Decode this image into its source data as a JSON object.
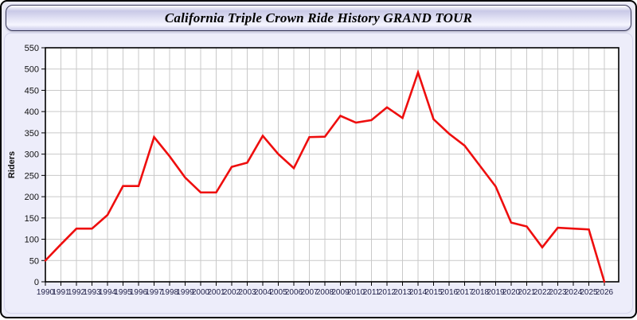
{
  "window": {
    "title": "California Triple Crown Ride History GRAND TOUR"
  },
  "colors": {
    "line": "#ee0e0e",
    "window_bg": "#ebebf8",
    "panel_bg": "#ededfa",
    "plot_bg": "#ffffff",
    "grid": "#c9c9c9",
    "axis_border": "#000000",
    "y_tick_label": "#111111",
    "x_tick_label": "#1d1d45",
    "title_color": "#000000"
  },
  "chart_data": {
    "type": "line",
    "title": "California Triple Crown Ride History GRAND TOUR",
    "xlabel": "",
    "ylabel": "Riders",
    "ylim": [
      0,
      550
    ],
    "ytick_step": 50,
    "grid": true,
    "legend": false,
    "x": [
      1990,
      1991,
      1992,
      1993,
      1994,
      1995,
      1996,
      1997,
      1998,
      1999,
      2000,
      2001,
      2002,
      2003,
      2004,
      2005,
      2006,
      2007,
      2008,
      2009,
      2010,
      2011,
      2012,
      2013,
      2014,
      2015,
      2016,
      2017,
      2018,
      2019,
      2020,
      2021,
      2022,
      2023,
      2024,
      2025,
      2026
    ],
    "series": [
      {
        "name": "Riders",
        "color": "#ee0e0e",
        "values": [
          50,
          88,
          125,
          125,
          157,
          225,
          225,
          340,
          295,
          245,
          210,
          210,
          270,
          280,
          343,
          300,
          267,
          340,
          341,
          390,
          374,
          380,
          410,
          385,
          492,
          382,
          348,
          320,
          272,
          224,
          139,
          130,
          81,
          127,
          125,
          123,
          0
        ]
      }
    ]
  }
}
